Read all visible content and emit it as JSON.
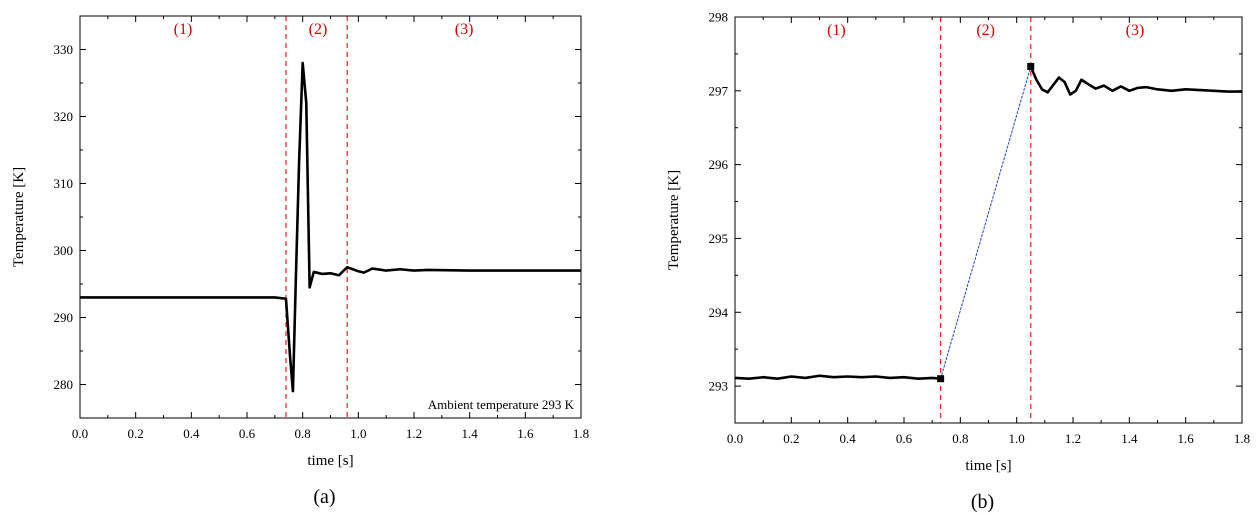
{
  "chart_data": [
    {
      "type": "line",
      "panel_caption": "(a)",
      "xlabel": "time [s]",
      "ylabel": "Temperature [K]",
      "xlim": [
        0,
        1.8
      ],
      "ylim": [
        275,
        335
      ],
      "x_ticks": [
        0.0,
        0.2,
        0.4,
        0.6,
        0.8,
        1.0,
        1.2,
        1.4,
        1.6,
        1.8
      ],
      "x_tick_labels": [
        "0.0",
        "0.2",
        "0.4",
        "0.6",
        "0.8",
        "1.0",
        "1.2",
        "1.4",
        "1.6",
        "1.8"
      ],
      "y_ticks": [
        280,
        290,
        300,
        310,
        320,
        330
      ],
      "y_tick_labels": [
        "280",
        "290",
        "300",
        "310",
        "320",
        "330"
      ],
      "grid": false,
      "series": [
        {
          "color": "#000000",
          "style": "solid",
          "points": [
            [
              0.0,
              293.0
            ],
            [
              0.2,
              293.0
            ],
            [
              0.4,
              293.0
            ],
            [
              0.6,
              293.0
            ],
            [
              0.7,
              293.0
            ],
            [
              0.74,
              292.8
            ],
            [
              0.755,
              284.0
            ],
            [
              0.765,
              279.0
            ],
            [
              0.775,
              295.0
            ],
            [
              0.787,
              313.0
            ],
            [
              0.8,
              328.0
            ],
            [
              0.813,
              322.0
            ],
            [
              0.825,
              294.5
            ],
            [
              0.84,
              296.8
            ],
            [
              0.87,
              296.5
            ],
            [
              0.9,
              296.6
            ],
            [
              0.93,
              296.3
            ],
            [
              0.96,
              297.5
            ],
            [
              1.0,
              296.9
            ],
            [
              1.02,
              296.7
            ],
            [
              1.05,
              297.3
            ],
            [
              1.1,
              297.0
            ],
            [
              1.15,
              297.2
            ],
            [
              1.2,
              297.0
            ],
            [
              1.25,
              297.1
            ],
            [
              1.4,
              297.0
            ],
            [
              1.6,
              297.0
            ],
            [
              1.8,
              297.0
            ]
          ]
        }
      ],
      "vlines": [
        {
          "x": 0.74,
          "color": "#e82020",
          "style": "dashed"
        },
        {
          "x": 0.96,
          "color": "#e82020",
          "style": "dashed"
        }
      ],
      "regions": [
        {
          "label": "(1)",
          "x": 0.37
        },
        {
          "label": "(2)",
          "x": 0.855
        },
        {
          "label": "(3)",
          "x": 1.38
        }
      ],
      "annotation": "Ambient temperature 293 K"
    },
    {
      "type": "line",
      "panel_caption": "(b)",
      "xlabel": "time [s]",
      "ylabel": "Temperature [K]",
      "xlim": [
        0,
        1.8
      ],
      "ylim": [
        292.5,
        298
      ],
      "x_ticks": [
        0.0,
        0.2,
        0.4,
        0.6,
        0.8,
        1.0,
        1.2,
        1.4,
        1.6,
        1.8
      ],
      "x_tick_labels": [
        "0.0",
        "0.2",
        "0.4",
        "0.6",
        "0.8",
        "1.0",
        "1.2",
        "1.4",
        "1.6",
        "1.8"
      ],
      "y_ticks": [
        293,
        294,
        295,
        296,
        297,
        298
      ],
      "y_tick_labels": [
        "293",
        "294",
        "295",
        "296",
        "297",
        "298"
      ],
      "grid": false,
      "series": [
        {
          "color": "#000000",
          "style": "solid",
          "points": [
            [
              0.0,
              293.11
            ],
            [
              0.05,
              293.1
            ],
            [
              0.1,
              293.12
            ],
            [
              0.15,
              293.1
            ],
            [
              0.2,
              293.13
            ],
            [
              0.25,
              293.11
            ],
            [
              0.3,
              293.14
            ],
            [
              0.35,
              293.12
            ],
            [
              0.4,
              293.13
            ],
            [
              0.45,
              293.12
            ],
            [
              0.5,
              293.13
            ],
            [
              0.55,
              293.11
            ],
            [
              0.6,
              293.12
            ],
            [
              0.65,
              293.1
            ],
            [
              0.7,
              293.11
            ],
            [
              0.73,
              293.1
            ]
          ]
        },
        {
          "color": "#000000",
          "style": "solid",
          "points": [
            [
              1.05,
              297.33
            ],
            [
              1.07,
              297.15
            ],
            [
              1.09,
              297.02
            ],
            [
              1.11,
              296.98
            ],
            [
              1.13,
              297.08
            ],
            [
              1.15,
              297.18
            ],
            [
              1.17,
              297.12
            ],
            [
              1.19,
              296.95
            ],
            [
              1.21,
              297.0
            ],
            [
              1.23,
              297.15
            ],
            [
              1.25,
              297.1
            ],
            [
              1.28,
              297.03
            ],
            [
              1.31,
              297.07
            ],
            [
              1.34,
              297.0
            ],
            [
              1.37,
              297.06
            ],
            [
              1.4,
              297.0
            ],
            [
              1.43,
              297.04
            ],
            [
              1.46,
              297.05
            ],
            [
              1.5,
              297.02
            ],
            [
              1.55,
              297.0
            ],
            [
              1.6,
              297.02
            ],
            [
              1.65,
              297.01
            ],
            [
              1.7,
              297.0
            ],
            [
              1.75,
              296.99
            ],
            [
              1.8,
              296.99
            ]
          ]
        },
        {
          "color": "#1f3fbf",
          "style": "dotted",
          "points": [
            [
              0.73,
              293.1
            ],
            [
              1.05,
              297.33
            ]
          ]
        }
      ],
      "markers": [
        {
          "x": 0.73,
          "y": 293.1,
          "shape": "square",
          "color": "#000000"
        },
        {
          "x": 1.05,
          "y": 297.33,
          "shape": "square",
          "color": "#000000"
        }
      ],
      "vlines": [
        {
          "x": 0.73,
          "color": "#e82020",
          "style": "dashed"
        },
        {
          "x": 1.05,
          "color": "#e82020",
          "style": "dashed"
        }
      ],
      "regions": [
        {
          "label": "(1)",
          "x": 0.36
        },
        {
          "label": "(2)",
          "x": 0.89
        },
        {
          "label": "(3)",
          "x": 1.42
        }
      ],
      "annotation": ""
    }
  ]
}
